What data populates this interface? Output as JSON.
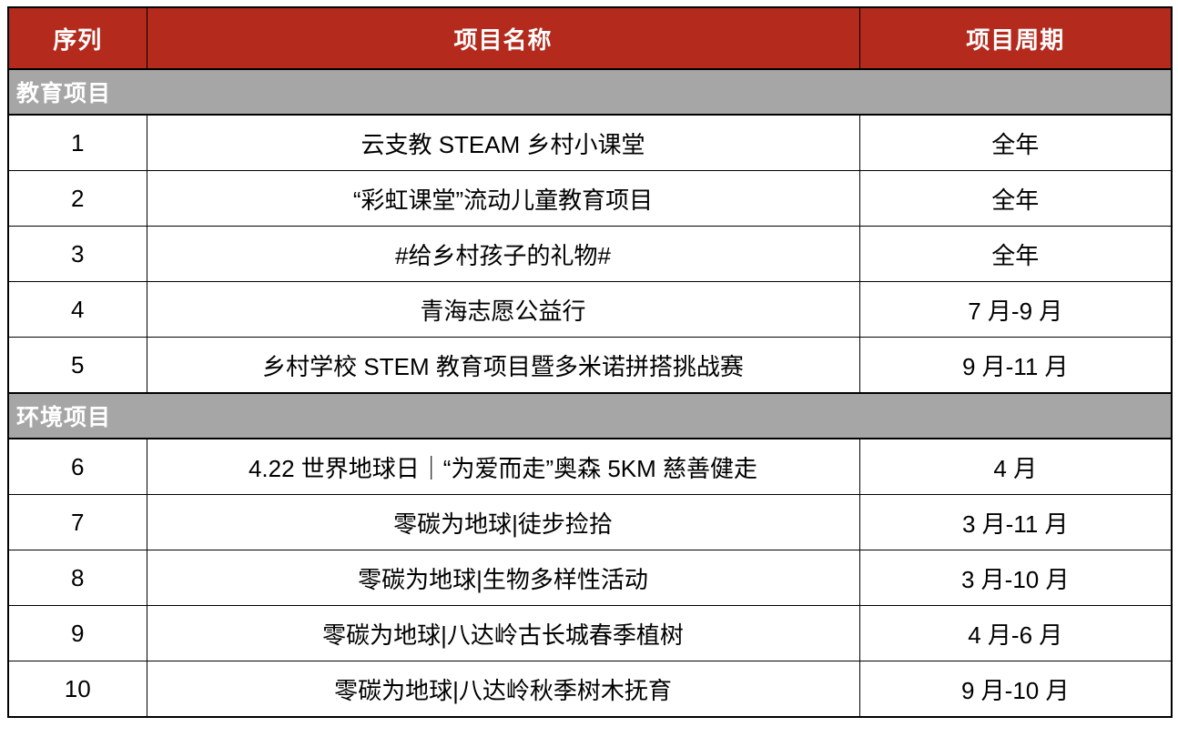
{
  "table": {
    "headers": {
      "col_no": "序列",
      "col_name": "项目名称",
      "col_period": "项目周期"
    },
    "sections": [
      {
        "title": "教育项目",
        "rows": [
          {
            "no": "1",
            "name": "云支教 STEAM 乡村小课堂",
            "period": "全年"
          },
          {
            "no": "2",
            "name": "“彩虹课堂”流动儿童教育项目",
            "period": "全年"
          },
          {
            "no": "3",
            "name": "#给乡村孩子的礼物#",
            "period": "全年"
          },
          {
            "no": "4",
            "name": "青海志愿公益行",
            "period": "7 月-9 月"
          },
          {
            "no": "5",
            "name": "乡村学校 STEM 教育项目暨多米诺拼搭挑战赛",
            "period": "9 月-11 月"
          }
        ]
      },
      {
        "title": "环境项目",
        "rows": [
          {
            "no": "6",
            "name": "4.22 世界地球日｜“为爱而走”奥森 5KM 慈善健走",
            "period": "4 月"
          },
          {
            "no": "7",
            "name": "零碳为地球|徒步捡拾",
            "period": "3 月-11 月"
          },
          {
            "no": "8",
            "name": "零碳为地球|生物多样性活动",
            "period": "3 月-10 月"
          },
          {
            "no": "9",
            "name": "零碳为地球|八达岭古长城春季植树",
            "period": "4 月-6 月"
          },
          {
            "no": "10",
            "name": "零碳为地球|八达岭秋季树木抚育",
            "period": "9 月-10 月"
          }
        ]
      }
    ],
    "colors": {
      "header_bg": "#b42a1d",
      "header_text": "#ffffff",
      "section_bg": "#a6a6a6",
      "section_text": "#ffffff",
      "border": "#000000",
      "cell_text": "#000000"
    }
  }
}
